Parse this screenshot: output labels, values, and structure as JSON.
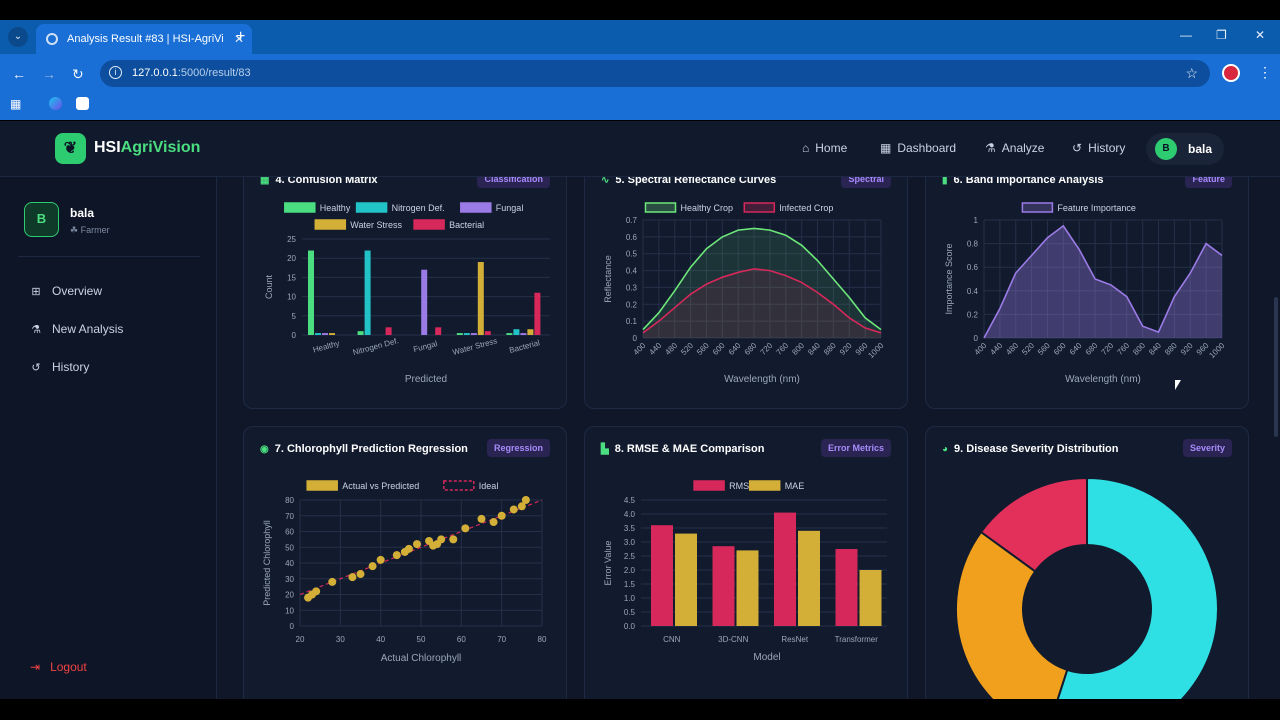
{
  "browser": {
    "tab_title": "Analysis Result #83 | HSI-AgriVi",
    "url_host": "127.0.0.1",
    "url_path": ":5000/result/83"
  },
  "topnav": {
    "logo_main": "HSI",
    "logo_accent": "AgriVision",
    "links": [
      {
        "label": "Home",
        "icon": "home-icon"
      },
      {
        "label": "Dashboard",
        "icon": "dashboard-icon"
      },
      {
        "label": "Analyze",
        "icon": "analyze-icon"
      },
      {
        "label": "History",
        "icon": "history-icon"
      }
    ],
    "user_initial": "B",
    "user_name": "bala"
  },
  "sidebar": {
    "avatar_initial": "B",
    "user_name": "bala",
    "user_role": "Farmer",
    "items": [
      {
        "label": "Overview",
        "icon": "grid-icon"
      },
      {
        "label": "New Analysis",
        "icon": "upload-icon"
      },
      {
        "label": "History",
        "icon": "history-icon"
      }
    ],
    "logout_label": "Logout"
  },
  "cards": {
    "c4": {
      "title": "4. Confusion Matrix",
      "badge": "Classification"
    },
    "c5": {
      "title": "5. Spectral Reflectance Curves",
      "badge": "Spectral"
    },
    "c6": {
      "title": "6. Band Importance Analysis",
      "badge": "Feature"
    },
    "c7": {
      "title": "7. Chlorophyll Prediction Regression",
      "badge": "Regression"
    },
    "c8": {
      "title": "8. RMSE & MAE Comparison",
      "badge": "Error Metrics"
    },
    "c9": {
      "title": "9. Disease Severity Distribution",
      "badge": "Severity"
    }
  },
  "colors": {
    "healthy": "#4ade80",
    "nitrogen": "#22c3c7",
    "fungal": "#9b7be6",
    "water": "#d4af37",
    "bacterial": "#d6285a",
    "accent": "#2ecc71"
  },
  "chart_data": [
    {
      "type": "bar",
      "title": "4. Confusion Matrix",
      "categories": [
        "Healthy",
        "Nitrogen Def.",
        "Fungal",
        "Water Stress",
        "Bacterial"
      ],
      "series": [
        {
          "name": "Healthy",
          "values": [
            22,
            1,
            0,
            0.5,
            0.5
          ]
        },
        {
          "name": "Nitrogen Def.",
          "values": [
            0.5,
            22,
            0,
            0.5,
            1.5
          ]
        },
        {
          "name": "Fungal",
          "values": [
            0.5,
            0,
            17,
            0.5,
            0.5
          ]
        },
        {
          "name": "Water Stress",
          "values": [
            0.5,
            0,
            0,
            19,
            1.5
          ]
        },
        {
          "name": "Bacterial",
          "values": [
            0,
            2,
            2,
            1,
            11
          ]
        }
      ],
      "xlabel": "Predicted",
      "ylabel": "Count",
      "ylim": [
        0,
        25
      ],
      "yticks": [
        0,
        5,
        10,
        15,
        20,
        25
      ]
    },
    {
      "type": "line",
      "title": "5. Spectral Reflectance Curves",
      "x": [
        400,
        440,
        480,
        520,
        560,
        600,
        640,
        680,
        720,
        760,
        800,
        840,
        880,
        920,
        960,
        1000
      ],
      "series": [
        {
          "name": "Healthy Crop",
          "values": [
            0.05,
            0.15,
            0.28,
            0.42,
            0.53,
            0.6,
            0.64,
            0.65,
            0.64,
            0.61,
            0.55,
            0.46,
            0.35,
            0.24,
            0.12,
            0.05
          ]
        },
        {
          "name": "Infected Crop",
          "values": [
            0.03,
            0.1,
            0.18,
            0.26,
            0.32,
            0.36,
            0.39,
            0.41,
            0.4,
            0.37,
            0.33,
            0.27,
            0.2,
            0.12,
            0.06,
            0.03
          ]
        }
      ],
      "xlabel": "Wavelength (nm)",
      "ylabel": "Reflectance",
      "ylim": [
        0,
        0.7
      ],
      "yticks": [
        0,
        0.1,
        0.2,
        0.3,
        0.4,
        0.5,
        0.6,
        0.7
      ]
    },
    {
      "type": "area",
      "title": "6. Band Importance Analysis",
      "x": [
        400,
        440,
        480,
        520,
        560,
        600,
        640,
        680,
        720,
        760,
        800,
        840,
        880,
        920,
        960,
        1000
      ],
      "series": [
        {
          "name": "Feature Importance",
          "values": [
            0.0,
            0.25,
            0.55,
            0.7,
            0.85,
            0.95,
            0.75,
            0.5,
            0.45,
            0.35,
            0.1,
            0.05,
            0.35,
            0.55,
            0.8,
            0.7
          ]
        }
      ],
      "xlabel": "Wavelength (nm)",
      "ylabel": "Importance Score",
      "ylim": [
        0,
        1.0
      ],
      "yticks": [
        0,
        0.2,
        0.4,
        0.6,
        0.8,
        1.0
      ]
    },
    {
      "type": "scatter",
      "title": "7. Chlorophyll Prediction Regression",
      "series": [
        {
          "name": "Actual vs Predicted",
          "points": [
            [
              22,
              18
            ],
            [
              23,
              20
            ],
            [
              24,
              22
            ],
            [
              28,
              28
            ],
            [
              33,
              31
            ],
            [
              35,
              33
            ],
            [
              38,
              38
            ],
            [
              40,
              42
            ],
            [
              44,
              45
            ],
            [
              46,
              47
            ],
            [
              47,
              49
            ],
            [
              49,
              52
            ],
            [
              52,
              54
            ],
            [
              53,
              51
            ],
            [
              54,
              52
            ],
            [
              55,
              55
            ],
            [
              58,
              55
            ],
            [
              61,
              62
            ],
            [
              65,
              68
            ],
            [
              68,
              66
            ],
            [
              70,
              70
            ],
            [
              73,
              74
            ],
            [
              75,
              76
            ],
            [
              76,
              80
            ]
          ]
        },
        {
          "name": "Ideal",
          "points": [
            [
              20,
              20
            ],
            [
              80,
              80
            ]
          ]
        }
      ],
      "xlabel": "Actual Chlorophyll",
      "ylabel": "Predicted Chlorophyll",
      "xlim": [
        20,
        80
      ],
      "ylim": [
        0,
        80
      ],
      "xticks": [
        20,
        30,
        40,
        50,
        60,
        70,
        80
      ],
      "yticks": [
        0,
        10,
        20,
        30,
        40,
        50,
        60,
        70,
        80
      ]
    },
    {
      "type": "bar",
      "title": "8. RMSE & MAE Comparison",
      "categories": [
        "CNN",
        "3D-CNN",
        "ResNet",
        "Transformer"
      ],
      "series": [
        {
          "name": "RMSE",
          "values": [
            3.6,
            2.85,
            4.05,
            2.75
          ]
        },
        {
          "name": "MAE",
          "values": [
            3.3,
            2.7,
            3.4,
            2.0
          ]
        }
      ],
      "xlabel": "Model",
      "ylabel": "Error Value",
      "ylim": [
        0,
        4.5
      ],
      "yticks": [
        0,
        0.5,
        1.0,
        1.5,
        2.0,
        2.5,
        3.0,
        3.5,
        4.0,
        4.5
      ]
    },
    {
      "type": "pie",
      "title": "9. Disease Severity Distribution",
      "slices": [
        {
          "value": 55,
          "color": "#2ee0e3"
        },
        {
          "value": 30,
          "color": "#f0a01c"
        },
        {
          "value": 15,
          "color": "#e2305a"
        }
      ]
    }
  ]
}
